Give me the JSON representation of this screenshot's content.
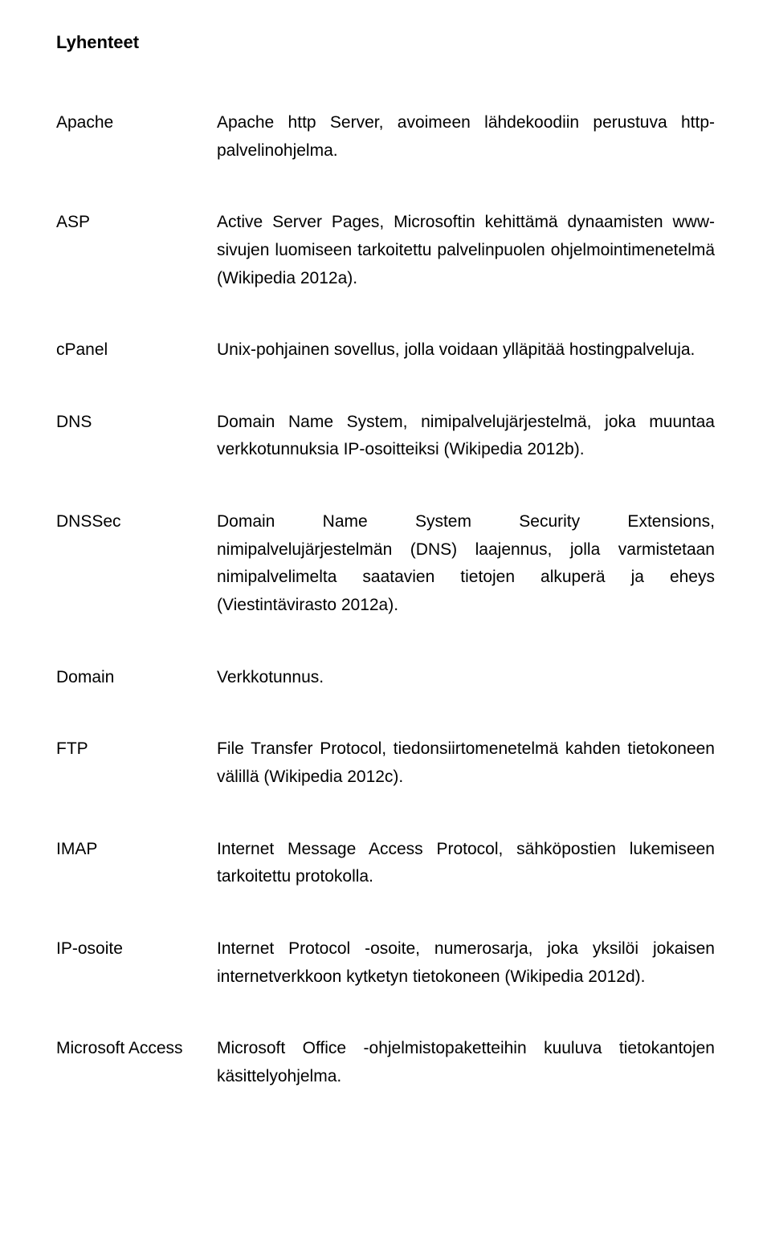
{
  "title": "Lyhenteet",
  "entries": [
    {
      "term": "Apache",
      "def": "Apache http Server, avoimeen lähdekoodiin perustuva http-palvelinohjelma."
    },
    {
      "term": "ASP",
      "def": "Active Server Pages, Microsoftin kehittämä dynaamisten www-sivujen luomiseen tarkoitettu palvelinpuolen ohjelmointimenetelmä (Wikipedia 2012a)."
    },
    {
      "term": "cPanel",
      "def": "Unix-pohjainen sovellus, jolla voidaan ylläpitää hostingpalveluja."
    },
    {
      "term": "DNS",
      "def": "Domain Name System, nimipalvelujärjestelmä, joka muuntaa verkkotunnuksia IP-osoitteiksi (Wikipedia 2012b)."
    },
    {
      "term": "DNSSec",
      "def": "Domain Name System Security Extensions, nimipalvelujärjestelmän (DNS) laajennus, jolla varmistetaan nimipalvelimelta saatavien tietojen alkuperä ja eheys (Viestintävirasto 2012a)."
    },
    {
      "term": "Domain",
      "def": "Verkkotunnus."
    },
    {
      "term": "FTP",
      "def": "File Transfer Protocol, tiedonsiirtomenetelmä kahden tietokoneen välillä (Wikipedia 2012c)."
    },
    {
      "term": "IMAP",
      "def": "Internet Message Access Protocol, sähköpostien lukemiseen tarkoitettu protokolla."
    },
    {
      "term": "IP-osoite",
      "def": "Internet Protocol -osoite, numerosarja, joka yksilöi jokaisen internetverkkoon kytketyn tietokoneen (Wikipedia 2012d)."
    }
  ],
  "lastTerm": "Microsoft Access",
  "lastDef": "Microsoft Office -ohjelmistopaketteihin kuuluva tietokantojen käsittelyohjelma."
}
